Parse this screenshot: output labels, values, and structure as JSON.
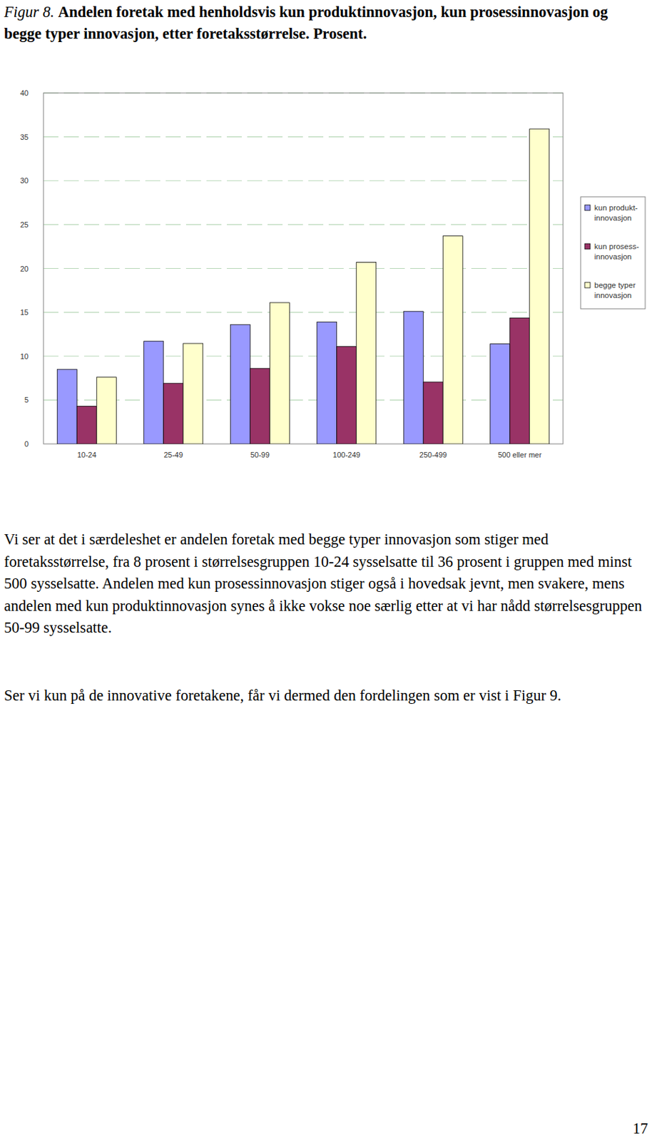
{
  "chart_data": {
    "type": "bar",
    "categories": [
      "10-24",
      "25-49",
      "50-99",
      "100-249",
      "250-499",
      "500 eller mer"
    ],
    "series": [
      {
        "name": "kun produkt-innovasjon",
        "color": "#9999ff",
        "values": [
          8.5,
          11.7,
          13.6,
          13.9,
          15.1,
          11.4
        ]
      },
      {
        "name": "kun prosess-innovasjon",
        "color": "#993366",
        "values": [
          4.3,
          6.9,
          8.6,
          11.1,
          7.05,
          14.35
        ]
      },
      {
        "name": "begge typer innovasjon",
        "color": "#ffffcc",
        "values": [
          7.6,
          11.45,
          16.1,
          20.7,
          23.7,
          35.9
        ]
      }
    ],
    "ylim": [
      0,
      40
    ],
    "yticks": [
      0,
      5,
      10,
      15,
      20,
      25,
      30,
      35,
      40
    ],
    "grid": true,
    "legend": "right"
  },
  "document": {
    "figure_label": "Figur 8.",
    "caption": "Andelen foretak med henholdsvis kun produktinnovasjon, kun prosessinnovasjon og begge typer innovasjon, etter foretaksstørrelse. Prosent.",
    "paragraphs": [
      "Vi ser at det i særdeleshet er andelen foretak med begge typer innovasjon som stiger med foretaksstørrelse, fra 8 prosent i størrelsesgruppen 10-24 sysselsatte til 36 prosent i gruppen med minst 500 sysselsatte. Andelen med kun prosessinnovasjon stiger også i hovedsak jevnt, men svakere, mens andelen med kun produktinnovasjon synes å ikke vokse noe særlig etter at vi har nådd størrelsesgruppen 50-99 sysselsatte.",
      "Ser vi kun på de innovative foretakene, får vi dermed den fordelingen som er vist i Figur 9."
    ],
    "page_number": 17
  }
}
